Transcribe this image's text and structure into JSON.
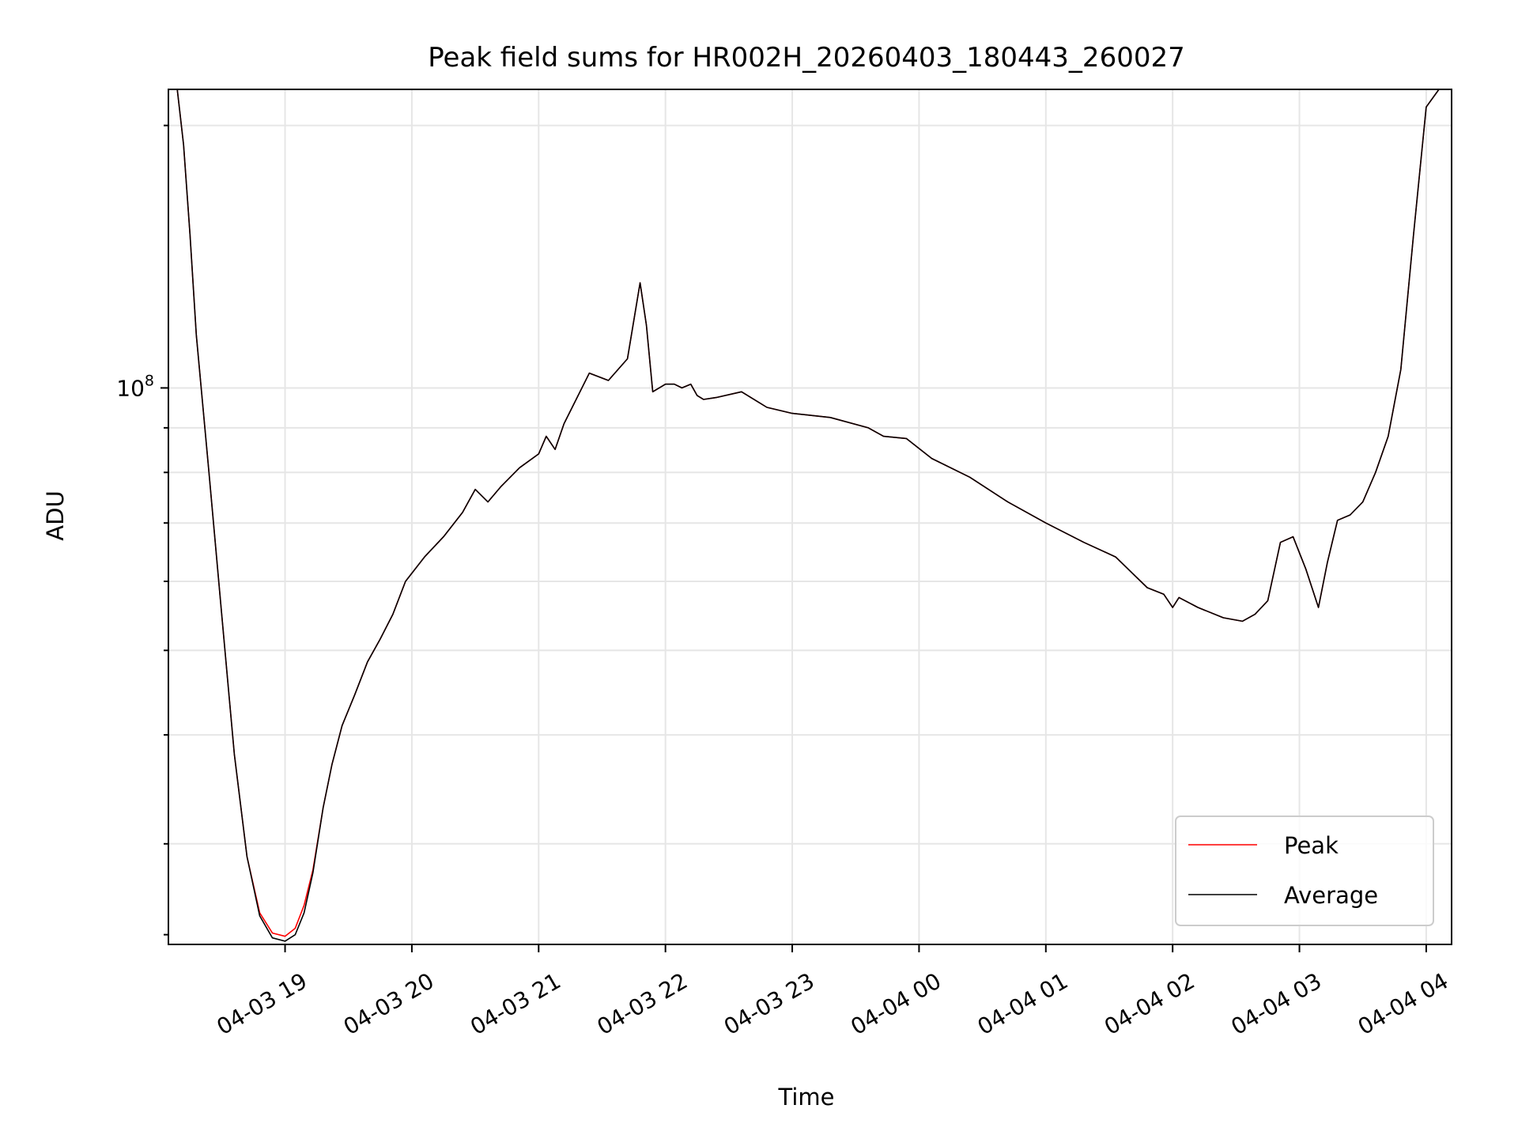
{
  "chart_data": {
    "type": "line",
    "title": "Peak field sums for HR002H_20260403_180443_260027",
    "xlabel": "Time",
    "ylabel": "ADU",
    "yscale": "log",
    "grid": true,
    "legend_position": "lower-right",
    "x_tick_labels": [
      "04-03 19",
      "04-03 20",
      "04-03 21",
      "04-03 22",
      "04-03 23",
      "04-04 00",
      "04-04 01",
      "04-04 02",
      "04-04 03",
      "04-04 04"
    ],
    "y_tick_label": "10^8",
    "x_unit": "hours since 04-03 19:00",
    "xlim": [
      -0.92,
      9.2
    ],
    "ylim": [
      23000000,
      220000000
    ],
    "series": [
      {
        "name": "Peak",
        "color": "#ff0000",
        "x": [
          -0.92,
          -0.85,
          -0.8,
          -0.75,
          -0.7,
          -0.6,
          -0.5,
          -0.4,
          -0.3,
          -0.2,
          -0.1,
          0.0,
          0.08,
          0.15,
          0.22,
          0.3,
          0.37,
          0.45,
          0.55,
          0.65,
          0.75,
          0.85,
          0.95,
          1.1,
          1.25,
          1.4,
          1.5,
          1.6,
          1.7,
          1.85,
          2.0,
          2.06,
          2.13,
          2.2,
          2.4,
          2.55,
          2.7,
          2.8,
          2.85,
          2.9,
          3.0,
          3.07,
          3.13,
          3.2,
          3.25,
          3.3,
          3.4,
          3.6,
          3.8,
          4.0,
          4.3,
          4.6,
          4.72,
          4.9,
          5.1,
          5.4,
          5.7,
          6.0,
          6.3,
          6.55,
          6.8,
          6.93,
          7.0,
          7.05,
          7.2,
          7.4,
          7.55,
          7.65,
          7.75,
          7.85,
          7.95,
          8.05,
          8.15,
          8.22,
          8.3,
          8.4,
          8.5,
          8.6,
          8.7,
          8.8,
          8.9,
          9.0,
          9.1,
          9.2
        ],
        "y": [
          220000000,
          220000000,
          190000000,
          150000000,
          115000000,
          80000000,
          55000000,
          38000000,
          29000000,
          25000000,
          23700000,
          23500000,
          24000000,
          25500000,
          28000000,
          33000000,
          37000000,
          41000000,
          44500000,
          48500000,
          51500000,
          55000000,
          60000000,
          64000000,
          67500000,
          72000000,
          76500000,
          74000000,
          77000000,
          81000000,
          84000000,
          88000000,
          85000000,
          91000000,
          104000000,
          102000000,
          108000000,
          132000000,
          118000000,
          99000000,
          101000000,
          101000000,
          100000000,
          101000000,
          98000000,
          97000000,
          97500000,
          99000000,
          95000000,
          93500000,
          92500000,
          90000000,
          88000000,
          87500000,
          83000000,
          79000000,
          74000000,
          70000000,
          66500000,
          64000000,
          59000000,
          58000000,
          56000000,
          57500000,
          56000000,
          54500000,
          54000000,
          55000000,
          57000000,
          66500000,
          67500000,
          62000000,
          56000000,
          63000000,
          70500000,
          71500000,
          74000000,
          80000000,
          88000000,
          105000000,
          150000000,
          210000000,
          220000000,
          220000000
        ]
      },
      {
        "name": "Average",
        "color": "#000000",
        "x": [
          -0.92,
          -0.85,
          -0.8,
          -0.75,
          -0.7,
          -0.6,
          -0.5,
          -0.4,
          -0.3,
          -0.2,
          -0.1,
          0.0,
          0.08,
          0.15,
          0.22,
          0.3,
          0.37,
          0.45,
          0.55,
          0.65,
          0.75,
          0.85,
          0.95,
          1.1,
          1.25,
          1.4,
          1.5,
          1.6,
          1.7,
          1.85,
          2.0,
          2.06,
          2.13,
          2.2,
          2.4,
          2.55,
          2.7,
          2.8,
          2.85,
          2.9,
          3.0,
          3.07,
          3.13,
          3.2,
          3.25,
          3.3,
          3.4,
          3.6,
          3.8,
          4.0,
          4.3,
          4.6,
          4.72,
          4.9,
          5.1,
          5.4,
          5.7,
          6.0,
          6.3,
          6.55,
          6.8,
          6.93,
          7.0,
          7.05,
          7.2,
          7.4,
          7.55,
          7.65,
          7.75,
          7.85,
          7.95,
          8.05,
          8.15,
          8.22,
          8.3,
          8.4,
          8.5,
          8.6,
          8.7,
          8.8,
          8.9,
          9.0,
          9.1,
          9.2
        ],
        "y": [
          220000000,
          220000000,
          190000000,
          150000000,
          115000000,
          80000000,
          55000000,
          38000000,
          29000000,
          24800000,
          23400000,
          23200000,
          23600000,
          25000000,
          27800000,
          33000000,
          37000000,
          41000000,
          44500000,
          48500000,
          51500000,
          55000000,
          60000000,
          64000000,
          67500000,
          72000000,
          76500000,
          74000000,
          77000000,
          81000000,
          84000000,
          88000000,
          85000000,
          91000000,
          104000000,
          102000000,
          108000000,
          132000000,
          118000000,
          99000000,
          101000000,
          101000000,
          100000000,
          101000000,
          98000000,
          97000000,
          97500000,
          99000000,
          95000000,
          93500000,
          92500000,
          90000000,
          88000000,
          87500000,
          83000000,
          79000000,
          74000000,
          70000000,
          66500000,
          64000000,
          59000000,
          58000000,
          56000000,
          57500000,
          56000000,
          54500000,
          54000000,
          55000000,
          57000000,
          66500000,
          67500000,
          62000000,
          56000000,
          63000000,
          70500000,
          71500000,
          74000000,
          80000000,
          88000000,
          105000000,
          150000000,
          210000000,
          220000000,
          220000000
        ]
      }
    ]
  }
}
